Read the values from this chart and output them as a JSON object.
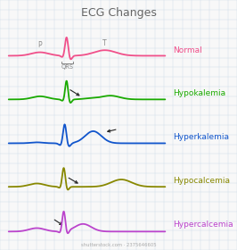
{
  "title": "ECG Changes",
  "title_fontsize": 9,
  "title_color": "#666666",
  "background_color": "#f8f8f8",
  "grid_color": "#d0dde8",
  "watermark": "shutterstock.com · 2375646605",
  "rows": [
    {
      "name": "Normal",
      "color": "#f0508a",
      "lw": 1.3
    },
    {
      "name": "Hypokalemia",
      "color": "#1aaa00",
      "lw": 1.3
    },
    {
      "name": "Hyperkalemia",
      "color": "#1155cc",
      "lw": 1.3
    },
    {
      "name": "Hypocalcemia",
      "color": "#888800",
      "lw": 1.3
    },
    {
      "name": "Hypercalcemia",
      "color": "#bb44cc",
      "lw": 1.3
    }
  ],
  "label_fontsize": 6.5,
  "annot_fontsize": 5.5,
  "arrow_color": "#222222"
}
